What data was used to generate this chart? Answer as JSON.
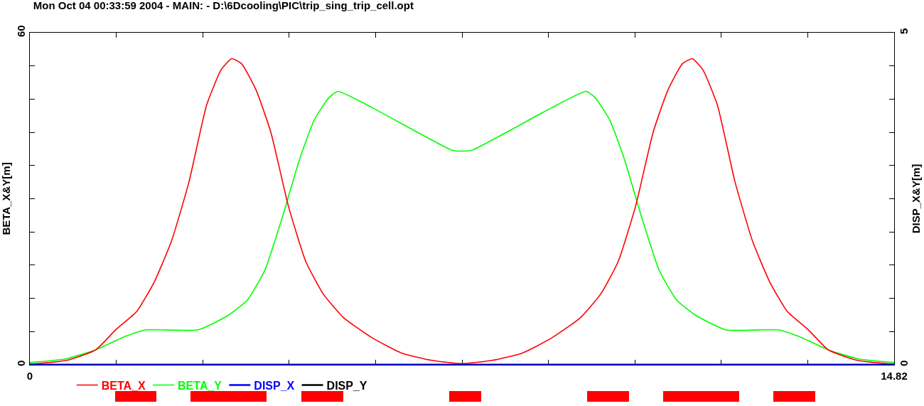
{
  "chart_data": {
    "type": "line",
    "title": "Mon Oct 04 00:33:59 2004 - MAIN: - D:\\6Dcooling\\PIC\\trip_sing_trip_cell.opt",
    "ylabel": "BETA_X&Y[m]",
    "y2label": "DISP_X&Y[m]",
    "xlim": [
      0,
      14.82
    ],
    "xticks": [
      0,
      {
        "value": 1.482,
        "label": null
      },
      {
        "value": 2.964,
        "label": null
      },
      {
        "value": 4.446,
        "label": null
      },
      {
        "value": 5.928,
        "label": null
      },
      {
        "value": 7.41,
        "label": null
      },
      {
        "value": 8.892,
        "label": null
      },
      {
        "value": 10.374,
        "label": null
      },
      {
        "value": 11.856,
        "label": null
      },
      {
        "value": 13.338,
        "label": null
      },
      14.82
    ],
    "ylim": [
      0,
      60
    ],
    "yticks": [
      0,
      {
        "value": 6,
        "label": null
      },
      {
        "value": 12,
        "label": null
      },
      {
        "value": 18,
        "label": null
      },
      {
        "value": 24,
        "label": null
      },
      {
        "value": 30,
        "label": null
      },
      {
        "value": 36,
        "label": null
      },
      {
        "value": 42,
        "label": null
      },
      {
        "value": 48,
        "label": null
      },
      {
        "value": 54,
        "label": null
      },
      60
    ],
    "y2lim": [
      0,
      5
    ],
    "y2ticks": [
      0,
      {
        "value": 0.5,
        "label": null
      },
      {
        "value": 1,
        "label": null
      },
      {
        "value": 1.5,
        "label": null
      },
      {
        "value": 2,
        "label": null
      },
      {
        "value": 2.5,
        "label": null
      },
      {
        "value": 3,
        "label": null
      },
      {
        "value": 3.5,
        "label": null
      },
      {
        "value": 4,
        "label": null
      },
      {
        "value": 4.5,
        "label": null
      },
      5
    ],
    "grid": false,
    "legend": "bottom",
    "marker": "none",
    "line_style": "solid",
    "series": [
      {
        "name": "BETA_X",
        "color": "#ff0000",
        "x": [
          0,
          0.63,
          1.13,
          1.48,
          1.83,
          2.13,
          2.43,
          2.73,
          3.03,
          3.28,
          3.46,
          3.63,
          3.88,
          4.13,
          4.43,
          4.73,
          5.03,
          5.38,
          5.88,
          6.38,
          6.89,
          7.41,
          7.93,
          8.44,
          8.94,
          9.44,
          9.79,
          10.09,
          10.39,
          10.69,
          10.94,
          11.19,
          11.36,
          11.54,
          11.79,
          12.09,
          12.39,
          12.69,
          12.99,
          13.34,
          13.69,
          14.19,
          14.82
        ],
        "values": [
          0.1,
          0.8,
          2.7,
          6.4,
          9.6,
          14.9,
          22.4,
          33.1,
          46.9,
          53.3,
          55.3,
          54.4,
          49.6,
          42.1,
          28.8,
          18.7,
          12.8,
          8.5,
          4.8,
          2.1,
          0.8,
          0.2,
          0.8,
          2.1,
          4.8,
          8.5,
          12.8,
          18.7,
          28.8,
          42.1,
          49.6,
          54.4,
          55.3,
          53.3,
          46.9,
          33.1,
          22.4,
          14.9,
          9.6,
          6.4,
          2.7,
          0.8,
          0.1
        ]
      },
      {
        "name": "BETA_Y",
        "color": "#00ff00",
        "x": [
          0,
          0.63,
          1.13,
          1.63,
          1.98,
          2.88,
          3.38,
          3.73,
          4.03,
          4.33,
          4.63,
          4.88,
          5.13,
          5.28,
          5.88,
          6.63,
          7.23,
          7.41,
          7.59,
          8.19,
          8.94,
          9.54,
          9.69,
          9.94,
          10.19,
          10.49,
          10.79,
          11.09,
          11.44,
          11.94,
          12.84,
          13.19,
          13.69,
          14.19,
          14.82
        ],
        "values": [
          0.4,
          1.1,
          2.7,
          5.1,
          6.3,
          6.3,
          8.8,
          11.7,
          17.1,
          26.7,
          37.3,
          44.3,
          48.3,
          49.4,
          46.4,
          42.1,
          38.8,
          38.6,
          38.8,
          42.1,
          46.4,
          49.4,
          48.3,
          44.3,
          37.3,
          26.7,
          17.1,
          11.7,
          8.8,
          6.3,
          6.3,
          5.1,
          2.7,
          1.1,
          0.4
        ]
      },
      {
        "name": "DISP_X",
        "color": "#0000ff",
        "axis": "y2",
        "x": [
          0,
          14.82
        ],
        "values": [
          0,
          0
        ]
      },
      {
        "name": "DISP_Y",
        "color": "#000000",
        "axis": "y2",
        "x": [
          0,
          14.82
        ],
        "values": [
          0,
          0
        ]
      }
    ]
  }
}
